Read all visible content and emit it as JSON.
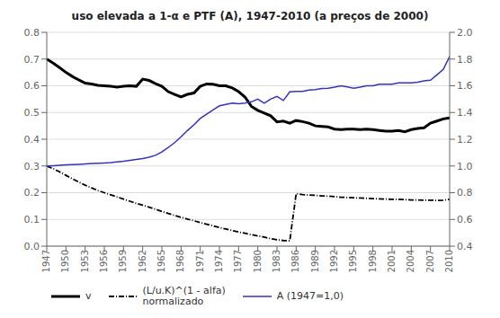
{
  "chart_data": {
    "type": "line",
    "title": "uso elevada a 1-α e PTF (A), 1947-2010 (a preços de 2000)",
    "x": [
      1947,
      1948,
      1949,
      1950,
      1951,
      1952,
      1953,
      1954,
      1955,
      1956,
      1957,
      1958,
      1959,
      1960,
      1961,
      1962,
      1963,
      1964,
      1965,
      1966,
      1967,
      1968,
      1969,
      1970,
      1971,
      1972,
      1973,
      1974,
      1975,
      1976,
      1977,
      1978,
      1979,
      1980,
      1981,
      1982,
      1983,
      1984,
      1985,
      1986,
      1987,
      1988,
      1989,
      1990,
      1991,
      1992,
      1993,
      1994,
      1995,
      1996,
      1997,
      1998,
      1999,
      2000,
      2001,
      2002,
      2003,
      2004,
      2005,
      2006,
      2007,
      2008,
      2009,
      2010
    ],
    "series": [
      {
        "name": "v",
        "color": "#000000",
        "line_style": "solid",
        "values": [
          0.7,
          0.685,
          0.668,
          0.65,
          0.635,
          0.622,
          0.61,
          0.607,
          0.602,
          0.6,
          0.598,
          0.595,
          0.598,
          0.6,
          0.598,
          0.625,
          0.62,
          0.608,
          0.598,
          0.578,
          0.568,
          0.558,
          0.568,
          0.573,
          0.598,
          0.607,
          0.606,
          0.6,
          0.6,
          0.592,
          0.578,
          0.558,
          0.523,
          0.508,
          0.498,
          0.488,
          0.465,
          0.468,
          0.46,
          0.47,
          0.466,
          0.46,
          0.45,
          0.448,
          0.446,
          0.438,
          0.436,
          0.438,
          0.438,
          0.436,
          0.438,
          0.436,
          0.433,
          0.43,
          0.43,
          0.433,
          0.428,
          0.436,
          0.44,
          0.443,
          0.46,
          0.468,
          0.476,
          0.48
        ]
      },
      {
        "name": "(L/u.K)^(1 - alfa)\nnormalizado",
        "color": "#000000",
        "line_style": "dashdot",
        "values": [
          0.3,
          0.29,
          0.278,
          0.265,
          0.252,
          0.24,
          0.228,
          0.218,
          0.208,
          0.2,
          0.192,
          0.184,
          0.176,
          0.168,
          0.16,
          0.153,
          0.146,
          0.138,
          0.13,
          0.122,
          0.115,
          0.108,
          0.101,
          0.095,
          0.088,
          0.082,
          0.076,
          0.07,
          0.064,
          0.058,
          0.053,
          0.048,
          0.043,
          0.038,
          0.034,
          0.028,
          0.024,
          0.021,
          0.02,
          0.196,
          0.193,
          0.191,
          0.19,
          0.188,
          0.187,
          0.185,
          0.183,
          0.182,
          0.181,
          0.18,
          0.179,
          0.178,
          0.177,
          0.176,
          0.175,
          0.175,
          0.174,
          0.173,
          0.173,
          0.172,
          0.172,
          0.171,
          0.172,
          0.175
        ]
      },
      {
        "name": "A (1947=1,0)",
        "color": "#3333bb",
        "line_style": "solid",
        "axis": "y2",
        "values": [
          1.0,
          1.002,
          1.005,
          1.008,
          1.01,
          1.012,
          1.015,
          1.018,
          1.02,
          1.022,
          1.025,
          1.03,
          1.035,
          1.042,
          1.048,
          1.055,
          1.065,
          1.08,
          1.105,
          1.138,
          1.175,
          1.218,
          1.265,
          1.308,
          1.355,
          1.388,
          1.42,
          1.45,
          1.46,
          1.47,
          1.465,
          1.47,
          1.48,
          1.5,
          1.47,
          1.5,
          1.52,
          1.49,
          1.555,
          1.558,
          1.558,
          1.568,
          1.572,
          1.58,
          1.582,
          1.59,
          1.6,
          1.592,
          1.582,
          1.59,
          1.6,
          1.6,
          1.612,
          1.612,
          1.612,
          1.622,
          1.622,
          1.622,
          1.627,
          1.637,
          1.642,
          1.682,
          1.722,
          1.82
        ]
      }
    ],
    "xlim": [
      1947,
      2010
    ],
    "xticks": [
      1947,
      1950,
      1953,
      1956,
      1959,
      1962,
      1965,
      1968,
      1971,
      1974,
      1977,
      1980,
      1983,
      1986,
      1989,
      1992,
      1995,
      1998,
      2001,
      2004,
      2007,
      2010
    ],
    "ylim": [
      0,
      0.8
    ],
    "yticks": [
      {
        "value": 0,
        "label": "0.0"
      },
      0.1,
      0.2,
      0.3,
      0.4,
      0.5,
      0.6,
      0.7,
      0.8
    ],
    "y2lim": [
      0.4,
      2.0
    ],
    "y2ticks": [
      0.4,
      0.6,
      0.8,
      {
        "value": 1.0,
        "label": "1.0"
      },
      1.2,
      1.4,
      1.6,
      1.8,
      {
        "value": 2.0,
        "label": "2.0"
      }
    ],
    "grid": true,
    "legend": "lower left"
  }
}
